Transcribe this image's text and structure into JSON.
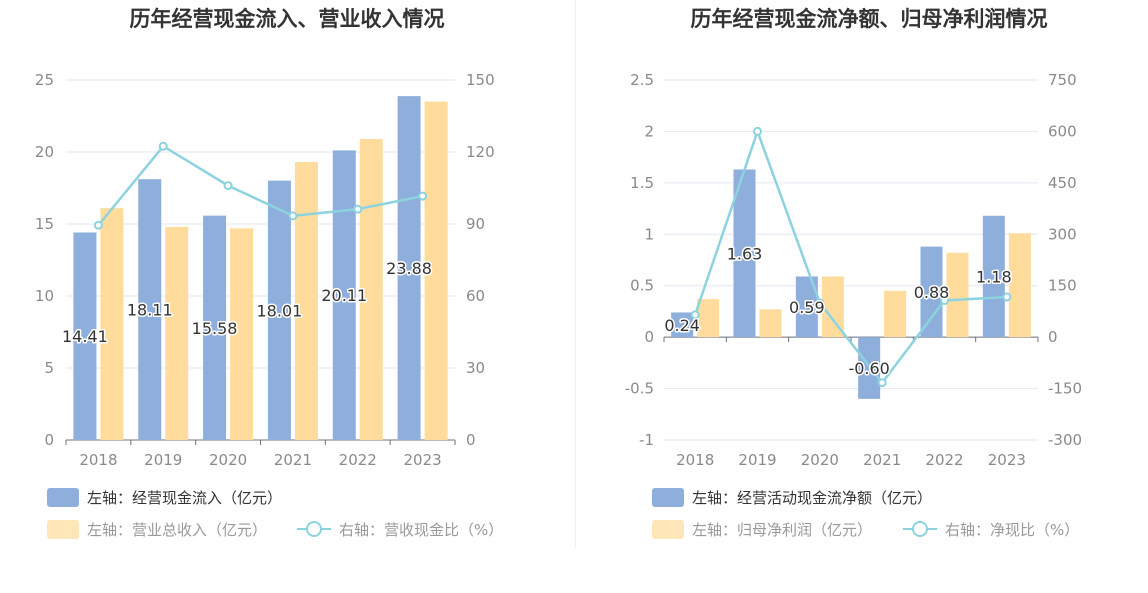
{
  "colors": {
    "blue": "#8eaedb",
    "orange": "#ffdb9c",
    "cyan": "#8dd3df",
    "axis_text": "#8a8a8a",
    "grid": "#e4e7f2"
  },
  "chart_data": [
    {
      "type": "bar",
      "title": "历年经营现金流入、营业收入情况",
      "categories": [
        "2018",
        "2019",
        "2020",
        "2021",
        "2022",
        "2023"
      ],
      "y_left": {
        "ticks": [
          "0",
          "5",
          "10",
          "15",
          "20",
          "25"
        ],
        "range": [
          0,
          25
        ]
      },
      "y_right": {
        "ticks": [
          "0",
          "30",
          "60",
          "90",
          "120",
          "150"
        ],
        "range": [
          0,
          150
        ]
      },
      "series": [
        {
          "name": "经营现金流入",
          "axis": "left",
          "type": "bar",
          "color": "#8eaedb",
          "values": [
            14.41,
            18.11,
            15.58,
            18.01,
            20.11,
            23.88
          ],
          "labels": [
            "14.41",
            "18.11",
            "15.58",
            "18.01",
            "20.11",
            "23.88"
          ]
        },
        {
          "name": "营业总收入",
          "axis": "left",
          "type": "bar",
          "color": "#ffdb9c",
          "values": [
            16.1,
            14.8,
            14.7,
            19.3,
            20.9,
            23.5
          ]
        },
        {
          "name": "营收现金比",
          "axis": "right",
          "type": "line",
          "color": "#8dd3df",
          "values": [
            89.5,
            122.4,
            106.0,
            93.4,
            96.2,
            101.6
          ]
        }
      ],
      "legend": [
        {
          "text": "左轴：经营现金流入（亿元）",
          "kind": "bar",
          "color": "#8eaedb"
        },
        {
          "text": "左轴：营业总收入（亿元）",
          "kind": "bar",
          "color": "#ffe6b8"
        },
        {
          "text": "右轴：营收现金比（%）",
          "kind": "line",
          "color": "#8dd3df"
        }
      ]
    },
    {
      "type": "bar",
      "title": "历年经营现金流净额、归母净利润情况",
      "categories": [
        "2018",
        "2019",
        "2020",
        "2021",
        "2022",
        "2023"
      ],
      "y_left": {
        "ticks": [
          "-1",
          "-0.5",
          "0",
          "0.5",
          "1",
          "1.5",
          "2",
          "2.5"
        ],
        "range": [
          -1,
          2.5
        ]
      },
      "y_right": {
        "ticks": [
          "-300",
          "-150",
          "0",
          "150",
          "300",
          "450",
          "600",
          "750"
        ],
        "range": [
          -300,
          750
        ]
      },
      "series": [
        {
          "name": "经营活动现金流净额",
          "axis": "left",
          "type": "bar",
          "color": "#8eaedb",
          "values": [
            0.24,
            1.63,
            0.59,
            -0.6,
            0.88,
            1.18
          ],
          "labels": [
            "0.24",
            "1.63",
            "0.59",
            "-0.60",
            "0.88",
            "1.18"
          ]
        },
        {
          "name": "归母净利润",
          "axis": "left",
          "type": "bar",
          "color": "#ffdb9c",
          "values": [
            0.37,
            0.27,
            0.59,
            0.45,
            0.82,
            1.01
          ]
        },
        {
          "name": "净现比",
          "axis": "right",
          "type": "line",
          "color": "#8dd3df",
          "values": [
            65,
            600,
            100,
            -133,
            107,
            117
          ]
        }
      ],
      "legend": [
        {
          "text": "左轴：经营活动现金流净额（亿元）",
          "kind": "bar",
          "color": "#8eaedb"
        },
        {
          "text": "左轴：归母净利润（亿元）",
          "kind": "bar",
          "color": "#ffe6b8"
        },
        {
          "text": "右轴：净现比（%）",
          "kind": "line",
          "color": "#8dd3df"
        }
      ]
    }
  ]
}
